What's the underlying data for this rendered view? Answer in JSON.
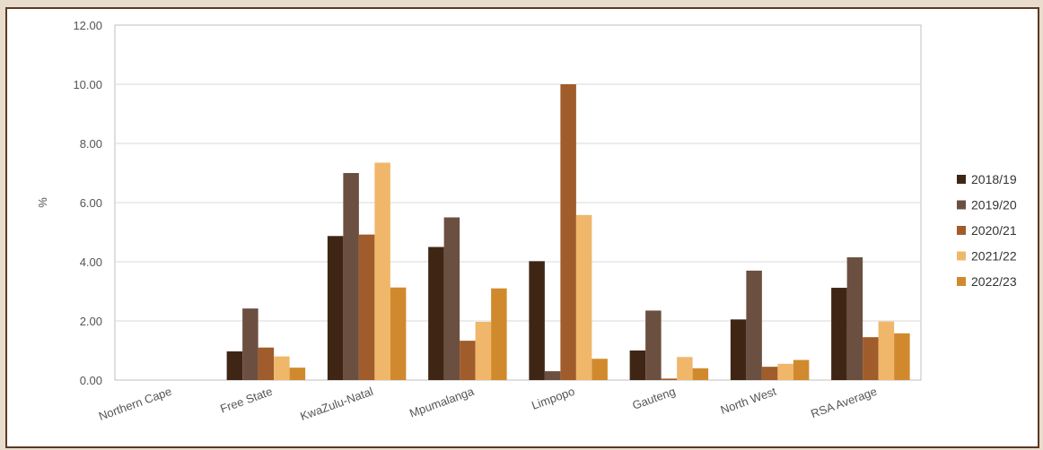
{
  "chart_data": {
    "type": "bar",
    "title": "",
    "xlabel": "",
    "ylabel": "%",
    "ylim": [
      0,
      12
    ],
    "yticks": [
      "0.00",
      "2.00",
      "4.00",
      "6.00",
      "8.00",
      "10.00",
      "12.00"
    ],
    "grid": true,
    "legend_position": "right",
    "categories": [
      "Northern Cape",
      "Free State",
      "KwaZulu-Natal",
      "Mpumalanga",
      "Limpopo",
      "Gauteng",
      "North West",
      "RSA Average"
    ],
    "series": [
      {
        "name": "2018/19",
        "color": "#3f2614",
        "values": [
          0,
          0.97,
          4.87,
          4.5,
          4.02,
          1.0,
          2.05,
          3.12
        ]
      },
      {
        "name": "2019/20",
        "color": "#6b5041",
        "values": [
          0,
          2.42,
          7.0,
          5.5,
          0.3,
          2.35,
          3.7,
          4.15
        ]
      },
      {
        "name": "2020/21",
        "color": "#a05c2a",
        "values": [
          0,
          1.1,
          4.92,
          1.33,
          10.0,
          0.05,
          0.45,
          1.45
        ]
      },
      {
        "name": "2021/22",
        "color": "#f0b76b",
        "values": [
          0,
          0.8,
          7.35,
          1.97,
          5.58,
          0.78,
          0.55,
          1.98
        ]
      },
      {
        "name": "2022/23",
        "color": "#d08a2d",
        "values": [
          0,
          0.42,
          3.13,
          3.1,
          0.72,
          0.4,
          0.68,
          1.58
        ]
      }
    ]
  }
}
